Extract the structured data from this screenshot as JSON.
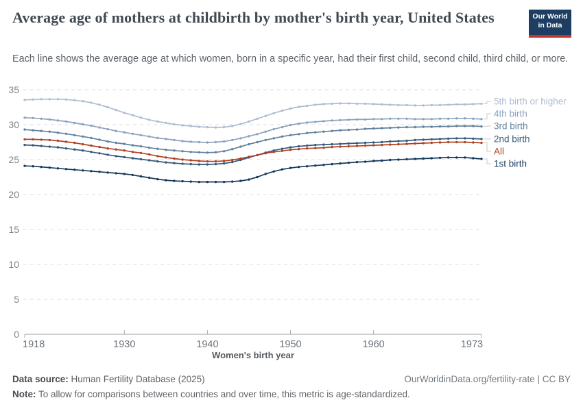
{
  "header": {
    "title": "Average age of mothers at childbirth by mother's birth year, United States",
    "subtitle": "Each line shows the average age at which women, born in a specific year, had their first child, second child, third child, or more.",
    "logo_line1": "Our World",
    "logo_line2": "in Data",
    "logo_bg": "#1d3d63",
    "logo_accent": "#c5342c"
  },
  "chart_data": {
    "type": "line",
    "xlabel": "Women's birth year",
    "ylim": [
      0,
      35
    ],
    "yticks": [
      0,
      5,
      10,
      15,
      20,
      25,
      30,
      35
    ],
    "xticks": [
      1918,
      1930,
      1940,
      1950,
      1960,
      1973
    ],
    "grid": "horizontal-dashed",
    "legend_position": "right-edge-labels",
    "legend_order": [
      "5th birth or higher",
      "4th birth",
      "3rd birth",
      "2nd birth",
      "All",
      "1st birth"
    ],
    "x": [
      1918,
      1919,
      1920,
      1921,
      1922,
      1923,
      1924,
      1925,
      1926,
      1927,
      1928,
      1929,
      1930,
      1931,
      1932,
      1933,
      1934,
      1935,
      1936,
      1937,
      1938,
      1939,
      1940,
      1941,
      1942,
      1943,
      1944,
      1945,
      1946,
      1947,
      1948,
      1949,
      1950,
      1951,
      1952,
      1953,
      1954,
      1955,
      1956,
      1957,
      1958,
      1959,
      1960,
      1961,
      1962,
      1963,
      1964,
      1965,
      1966,
      1967,
      1968,
      1969,
      1970,
      1971,
      1972,
      1973
    ],
    "series": [
      {
        "name": "5th birth or higher",
        "color": "#adbed2",
        "values": [
          33.55,
          33.6,
          33.65,
          33.65,
          33.65,
          33.6,
          33.5,
          33.35,
          33.15,
          32.85,
          32.5,
          32.1,
          31.7,
          31.35,
          31.0,
          30.7,
          30.45,
          30.25,
          30.05,
          29.9,
          29.8,
          29.7,
          29.65,
          29.6,
          29.65,
          29.8,
          30.1,
          30.45,
          30.85,
          31.25,
          31.65,
          32.0,
          32.3,
          32.55,
          32.7,
          32.85,
          32.95,
          33.0,
          33.05,
          33.05,
          33.0,
          33.0,
          32.95,
          32.9,
          32.85,
          32.8,
          32.8,
          32.75,
          32.75,
          32.8,
          32.8,
          32.85,
          32.9,
          32.9,
          32.95,
          33.0
        ]
      },
      {
        "name": "4th birth",
        "color": "#8ba3bf",
        "values": [
          31.0,
          30.95,
          30.85,
          30.75,
          30.6,
          30.45,
          30.25,
          30.05,
          29.85,
          29.6,
          29.35,
          29.1,
          28.9,
          28.7,
          28.5,
          28.3,
          28.1,
          27.95,
          27.8,
          27.65,
          27.55,
          27.5,
          27.45,
          27.5,
          27.6,
          27.8,
          28.05,
          28.35,
          28.65,
          29.0,
          29.35,
          29.65,
          29.95,
          30.15,
          30.3,
          30.4,
          30.5,
          30.6,
          30.65,
          30.7,
          30.75,
          30.75,
          30.8,
          30.8,
          30.85,
          30.85,
          30.85,
          30.8,
          30.8,
          30.8,
          30.85,
          30.85,
          30.9,
          30.9,
          30.85,
          30.8
        ]
      },
      {
        "name": "3rd birth",
        "color": "#61819f",
        "values": [
          29.3,
          29.2,
          29.1,
          29.0,
          28.85,
          28.7,
          28.5,
          28.3,
          28.1,
          27.85,
          27.6,
          27.4,
          27.25,
          27.05,
          26.9,
          26.7,
          26.55,
          26.4,
          26.3,
          26.2,
          26.1,
          26.05,
          26.0,
          26.05,
          26.2,
          26.5,
          26.85,
          27.2,
          27.5,
          27.8,
          28.05,
          28.3,
          28.5,
          28.65,
          28.8,
          28.9,
          29.0,
          29.1,
          29.2,
          29.25,
          29.3,
          29.4,
          29.45,
          29.5,
          29.55,
          29.6,
          29.65,
          29.65,
          29.7,
          29.7,
          29.75,
          29.75,
          29.8,
          29.8,
          29.8,
          29.75
        ]
      },
      {
        "name": "2nd birth",
        "color": "#35597b",
        "values": [
          27.1,
          27.05,
          26.95,
          26.85,
          26.75,
          26.6,
          26.45,
          26.3,
          26.1,
          25.9,
          25.7,
          25.5,
          25.35,
          25.2,
          25.05,
          24.9,
          24.75,
          24.6,
          24.5,
          24.4,
          24.35,
          24.3,
          24.3,
          24.35,
          24.45,
          24.65,
          24.95,
          25.3,
          25.65,
          26.0,
          26.3,
          26.55,
          26.75,
          26.9,
          27.0,
          27.1,
          27.15,
          27.2,
          27.25,
          27.3,
          27.35,
          27.4,
          27.45,
          27.5,
          27.6,
          27.65,
          27.7,
          27.8,
          27.85,
          27.9,
          27.95,
          28.0,
          28.05,
          28.05,
          28.0,
          27.95
        ]
      },
      {
        "name": "All",
        "color": "#b04123",
        "values": [
          27.9,
          27.9,
          27.85,
          27.8,
          27.7,
          27.55,
          27.4,
          27.2,
          27.0,
          26.8,
          26.6,
          26.45,
          26.3,
          26.1,
          25.95,
          25.75,
          25.5,
          25.3,
          25.15,
          25.0,
          24.9,
          24.8,
          24.75,
          24.75,
          24.8,
          24.95,
          25.15,
          25.4,
          25.65,
          25.9,
          26.1,
          26.25,
          26.4,
          26.5,
          26.6,
          26.65,
          26.7,
          26.8,
          26.85,
          26.9,
          26.95,
          27.0,
          27.05,
          27.1,
          27.15,
          27.2,
          27.25,
          27.3,
          27.35,
          27.4,
          27.45,
          27.5,
          27.5,
          27.5,
          27.45,
          27.4
        ]
      },
      {
        "name": "1st birth",
        "color": "#16395c",
        "values": [
          24.1,
          24.05,
          23.95,
          23.85,
          23.75,
          23.65,
          23.55,
          23.45,
          23.35,
          23.25,
          23.15,
          23.05,
          22.95,
          22.8,
          22.6,
          22.4,
          22.2,
          22.05,
          21.95,
          21.9,
          21.85,
          21.8,
          21.8,
          21.8,
          21.8,
          21.85,
          21.95,
          22.15,
          22.5,
          22.95,
          23.3,
          23.6,
          23.8,
          23.95,
          24.05,
          24.15,
          24.25,
          24.35,
          24.45,
          24.55,
          24.65,
          24.7,
          24.8,
          24.85,
          24.95,
          25.0,
          25.05,
          25.1,
          25.15,
          25.2,
          25.25,
          25.3,
          25.3,
          25.3,
          25.2,
          25.1
        ]
      }
    ]
  },
  "footer": {
    "source_label": "Data source:",
    "source_value": " Human Fertility Database (2025)",
    "right_text": "OurWorldinData.org/fertility-rate | CC BY",
    "note_label": "Note:",
    "note_value": " To allow for comparisons between countries and over time, this metric is age-standardized."
  }
}
